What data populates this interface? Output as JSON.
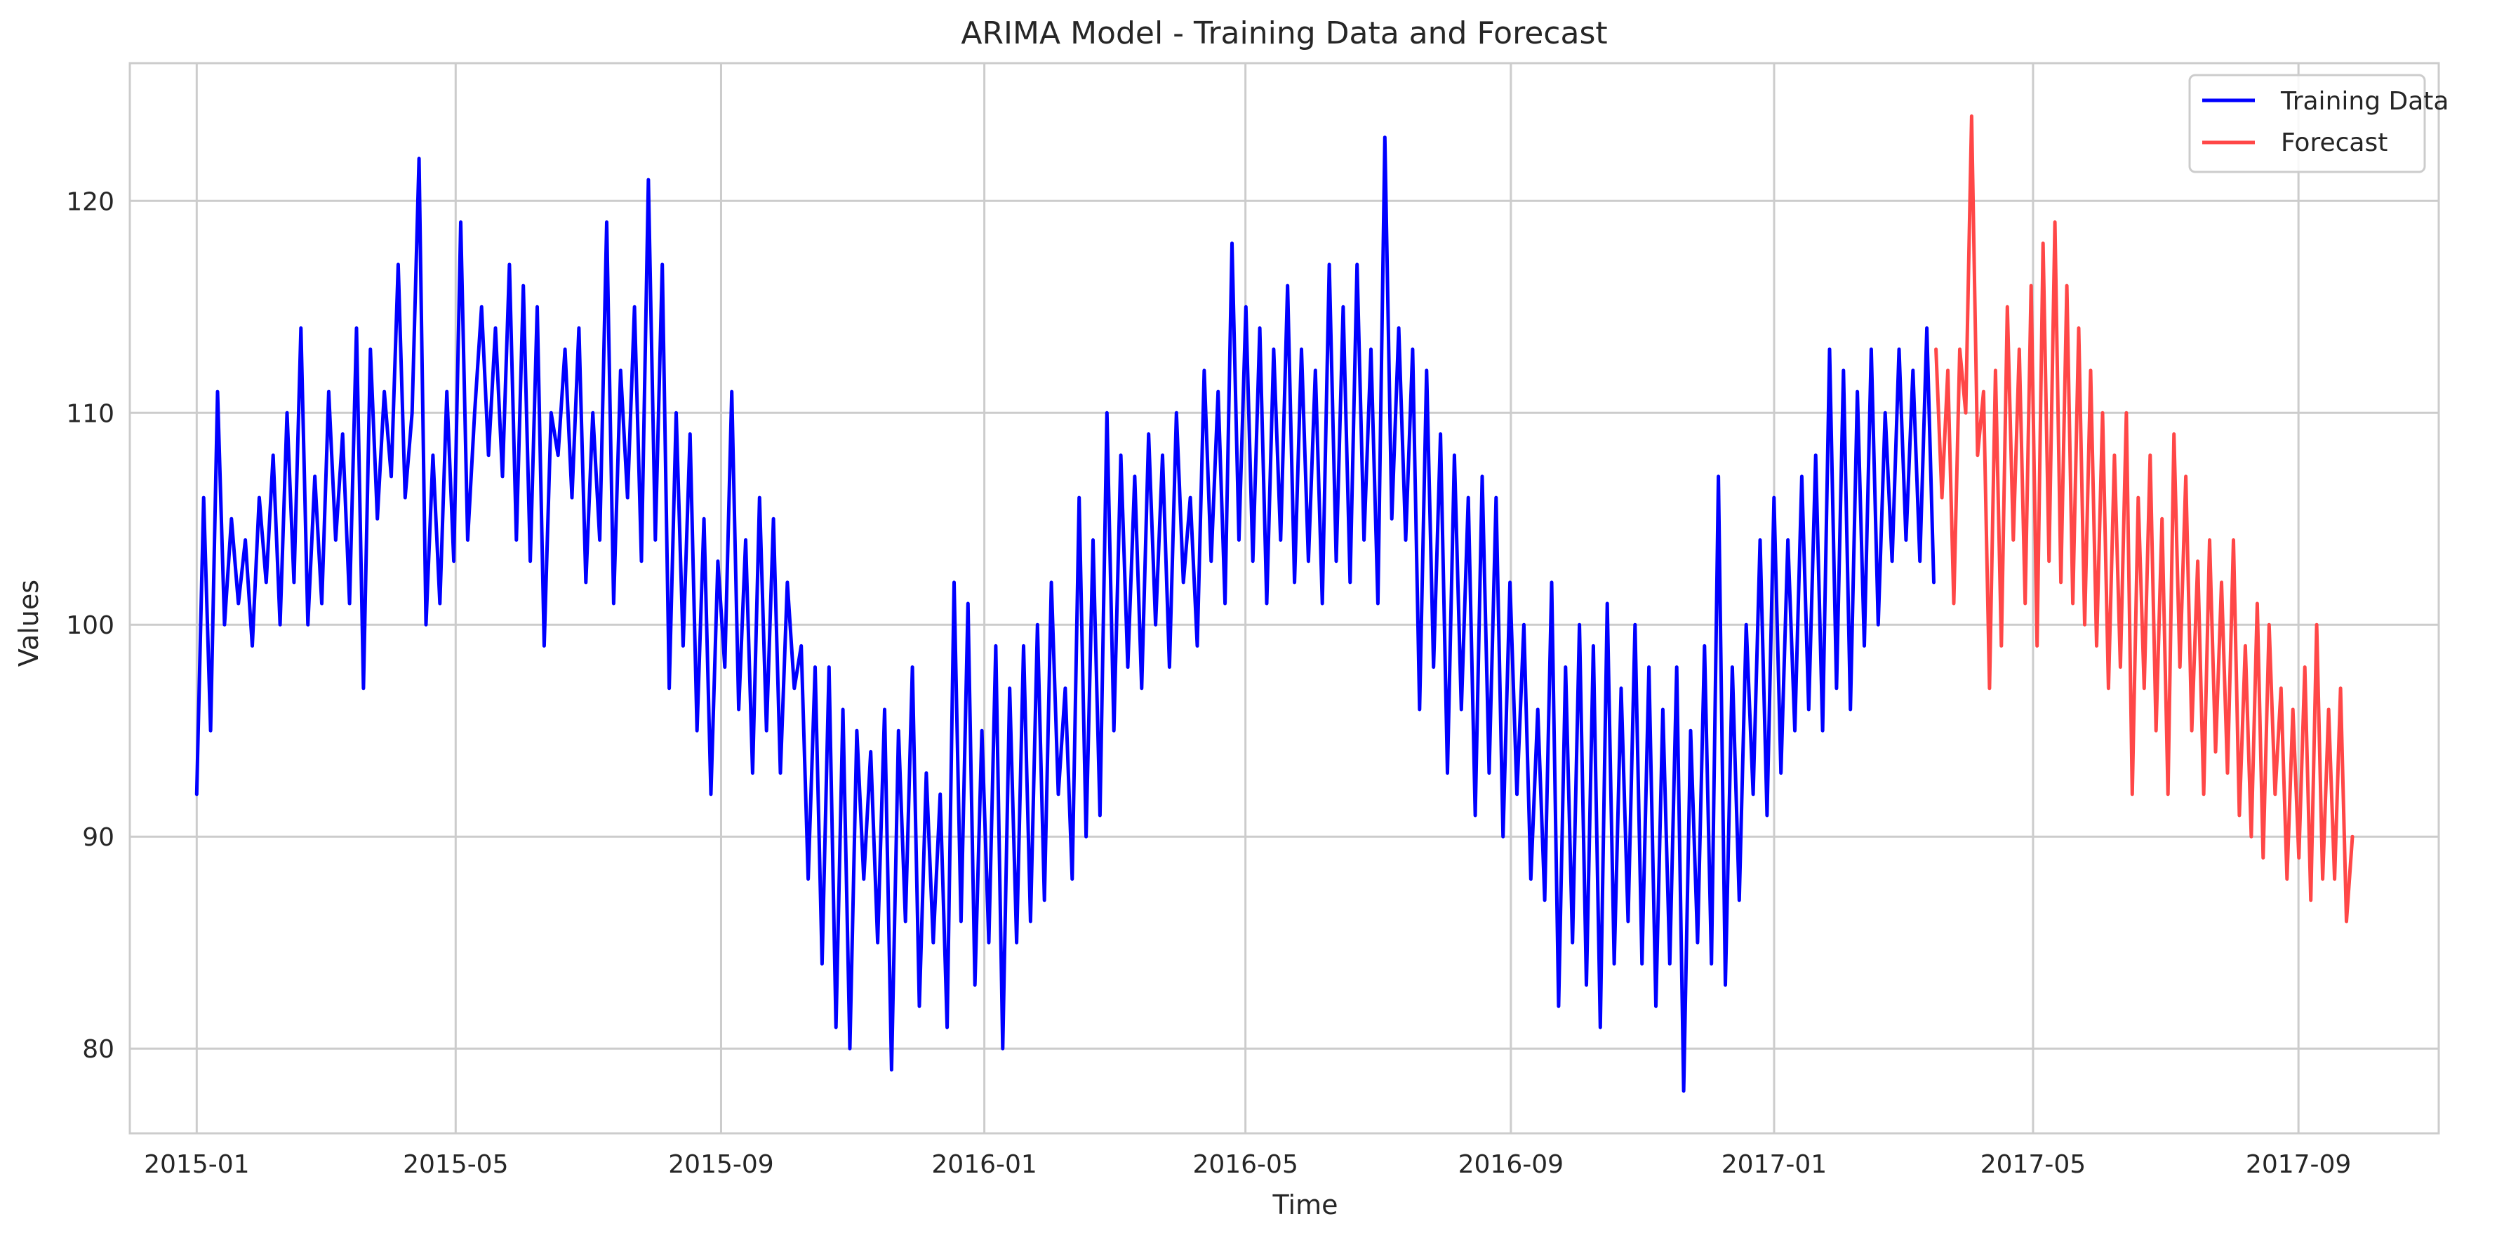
{
  "chart_data": {
    "type": "line",
    "title": "ARIMA Model - Training Data and Forecast",
    "xlabel": "Time",
    "ylabel": "Values",
    "x_ticks": [
      "2015-01",
      "2015-05",
      "2015-09",
      "2016-01",
      "2016-05",
      "2016-09",
      "2017-01",
      "2017-05",
      "2017-09"
    ],
    "y_ticks": [
      80,
      90,
      100,
      110,
      120
    ],
    "xlim": [
      "2014-12-01",
      "2017-11-05"
    ],
    "ylim": [
      76,
      126.5
    ],
    "grid": true,
    "legend_position": "top-right",
    "series": [
      {
        "name": "Training Data",
        "color": "#0000ff",
        "x_start": "2015-01-01",
        "x_end": "2017-03-16",
        "values": [
          92,
          106,
          95,
          111,
          100,
          105,
          101,
          104,
          99,
          106,
          102,
          108,
          100,
          110,
          102,
          114,
          100,
          107,
          101,
          111,
          104,
          109,
          101,
          114,
          97,
          113,
          105,
          111,
          107,
          117,
          106,
          110,
          122,
          100,
          108,
          101,
          111,
          103,
          119,
          104,
          110,
          115,
          108,
          114,
          107,
          117,
          104,
          116,
          103,
          115,
          99,
          110,
          108,
          113,
          106,
          114,
          102,
          110,
          104,
          119,
          101,
          112,
          106,
          115,
          103,
          121,
          104,
          117,
          97,
          110,
          99,
          109,
          95,
          105,
          92,
          103,
          98,
          111,
          96,
          104,
          93,
          106,
          95,
          105,
          93,
          102,
          97,
          99,
          88,
          98,
          84,
          98,
          81,
          96,
          80,
          95,
          88,
          94,
          85,
          96,
          79,
          95,
          86,
          98,
          82,
          93,
          85,
          92,
          81,
          102,
          86,
          101,
          83,
          95,
          85,
          99,
          80,
          97,
          85,
          99,
          86,
          100,
          87,
          102,
          92,
          97,
          88,
          106,
          90,
          104,
          91,
          110,
          95,
          108,
          98,
          107,
          97,
          109,
          100,
          108,
          98,
          110,
          102,
          106,
          99,
          112,
          103,
          111,
          101,
          118,
          104,
          115,
          103,
          114,
          101,
          113,
          104,
          116,
          102,
          113,
          103,
          112,
          101,
          117,
          103,
          115,
          102,
          117,
          104,
          113,
          101,
          123,
          105,
          114,
          104,
          113,
          96,
          112,
          98,
          109,
          93,
          108,
          96,
          106,
          91,
          107,
          93,
          106,
          90,
          102,
          92,
          100,
          88,
          96,
          87,
          102,
          82,
          98,
          85,
          100,
          83,
          99,
          81,
          101,
          84,
          97,
          86,
          100,
          84,
          98,
          82,
          96,
          84,
          98,
          78,
          95,
          85,
          99,
          84,
          107,
          83,
          98,
          87,
          100,
          92,
          104,
          91,
          106,
          93,
          104,
          95,
          107,
          96,
          108,
          95,
          113,
          97,
          112,
          96,
          111,
          99,
          113,
          100,
          110,
          103,
          113,
          104,
          112,
          103,
          114,
          102
        ]
      },
      {
        "name": "Forecast",
        "color": "#ff4747",
        "x_start": "2017-03-17",
        "x_end": "2017-09-26",
        "values": [
          113,
          106,
          112,
          101,
          113,
          110,
          124,
          108,
          111,
          97,
          112,
          99,
          115,
          104,
          113,
          101,
          116,
          99,
          118,
          103,
          119,
          102,
          116,
          101,
          114,
          100,
          112,
          99,
          110,
          97,
          108,
          98,
          110,
          92,
          106,
          97,
          108,
          95,
          105,
          92,
          109,
          98,
          107,
          95,
          103,
          92,
          104,
          94,
          102,
          93,
          104,
          91,
          99,
          90,
          101,
          89,
          100,
          92,
          97,
          88,
          96,
          89,
          98,
          87,
          100,
          88,
          96,
          88,
          97,
          86,
          90
        ]
      }
    ]
  }
}
